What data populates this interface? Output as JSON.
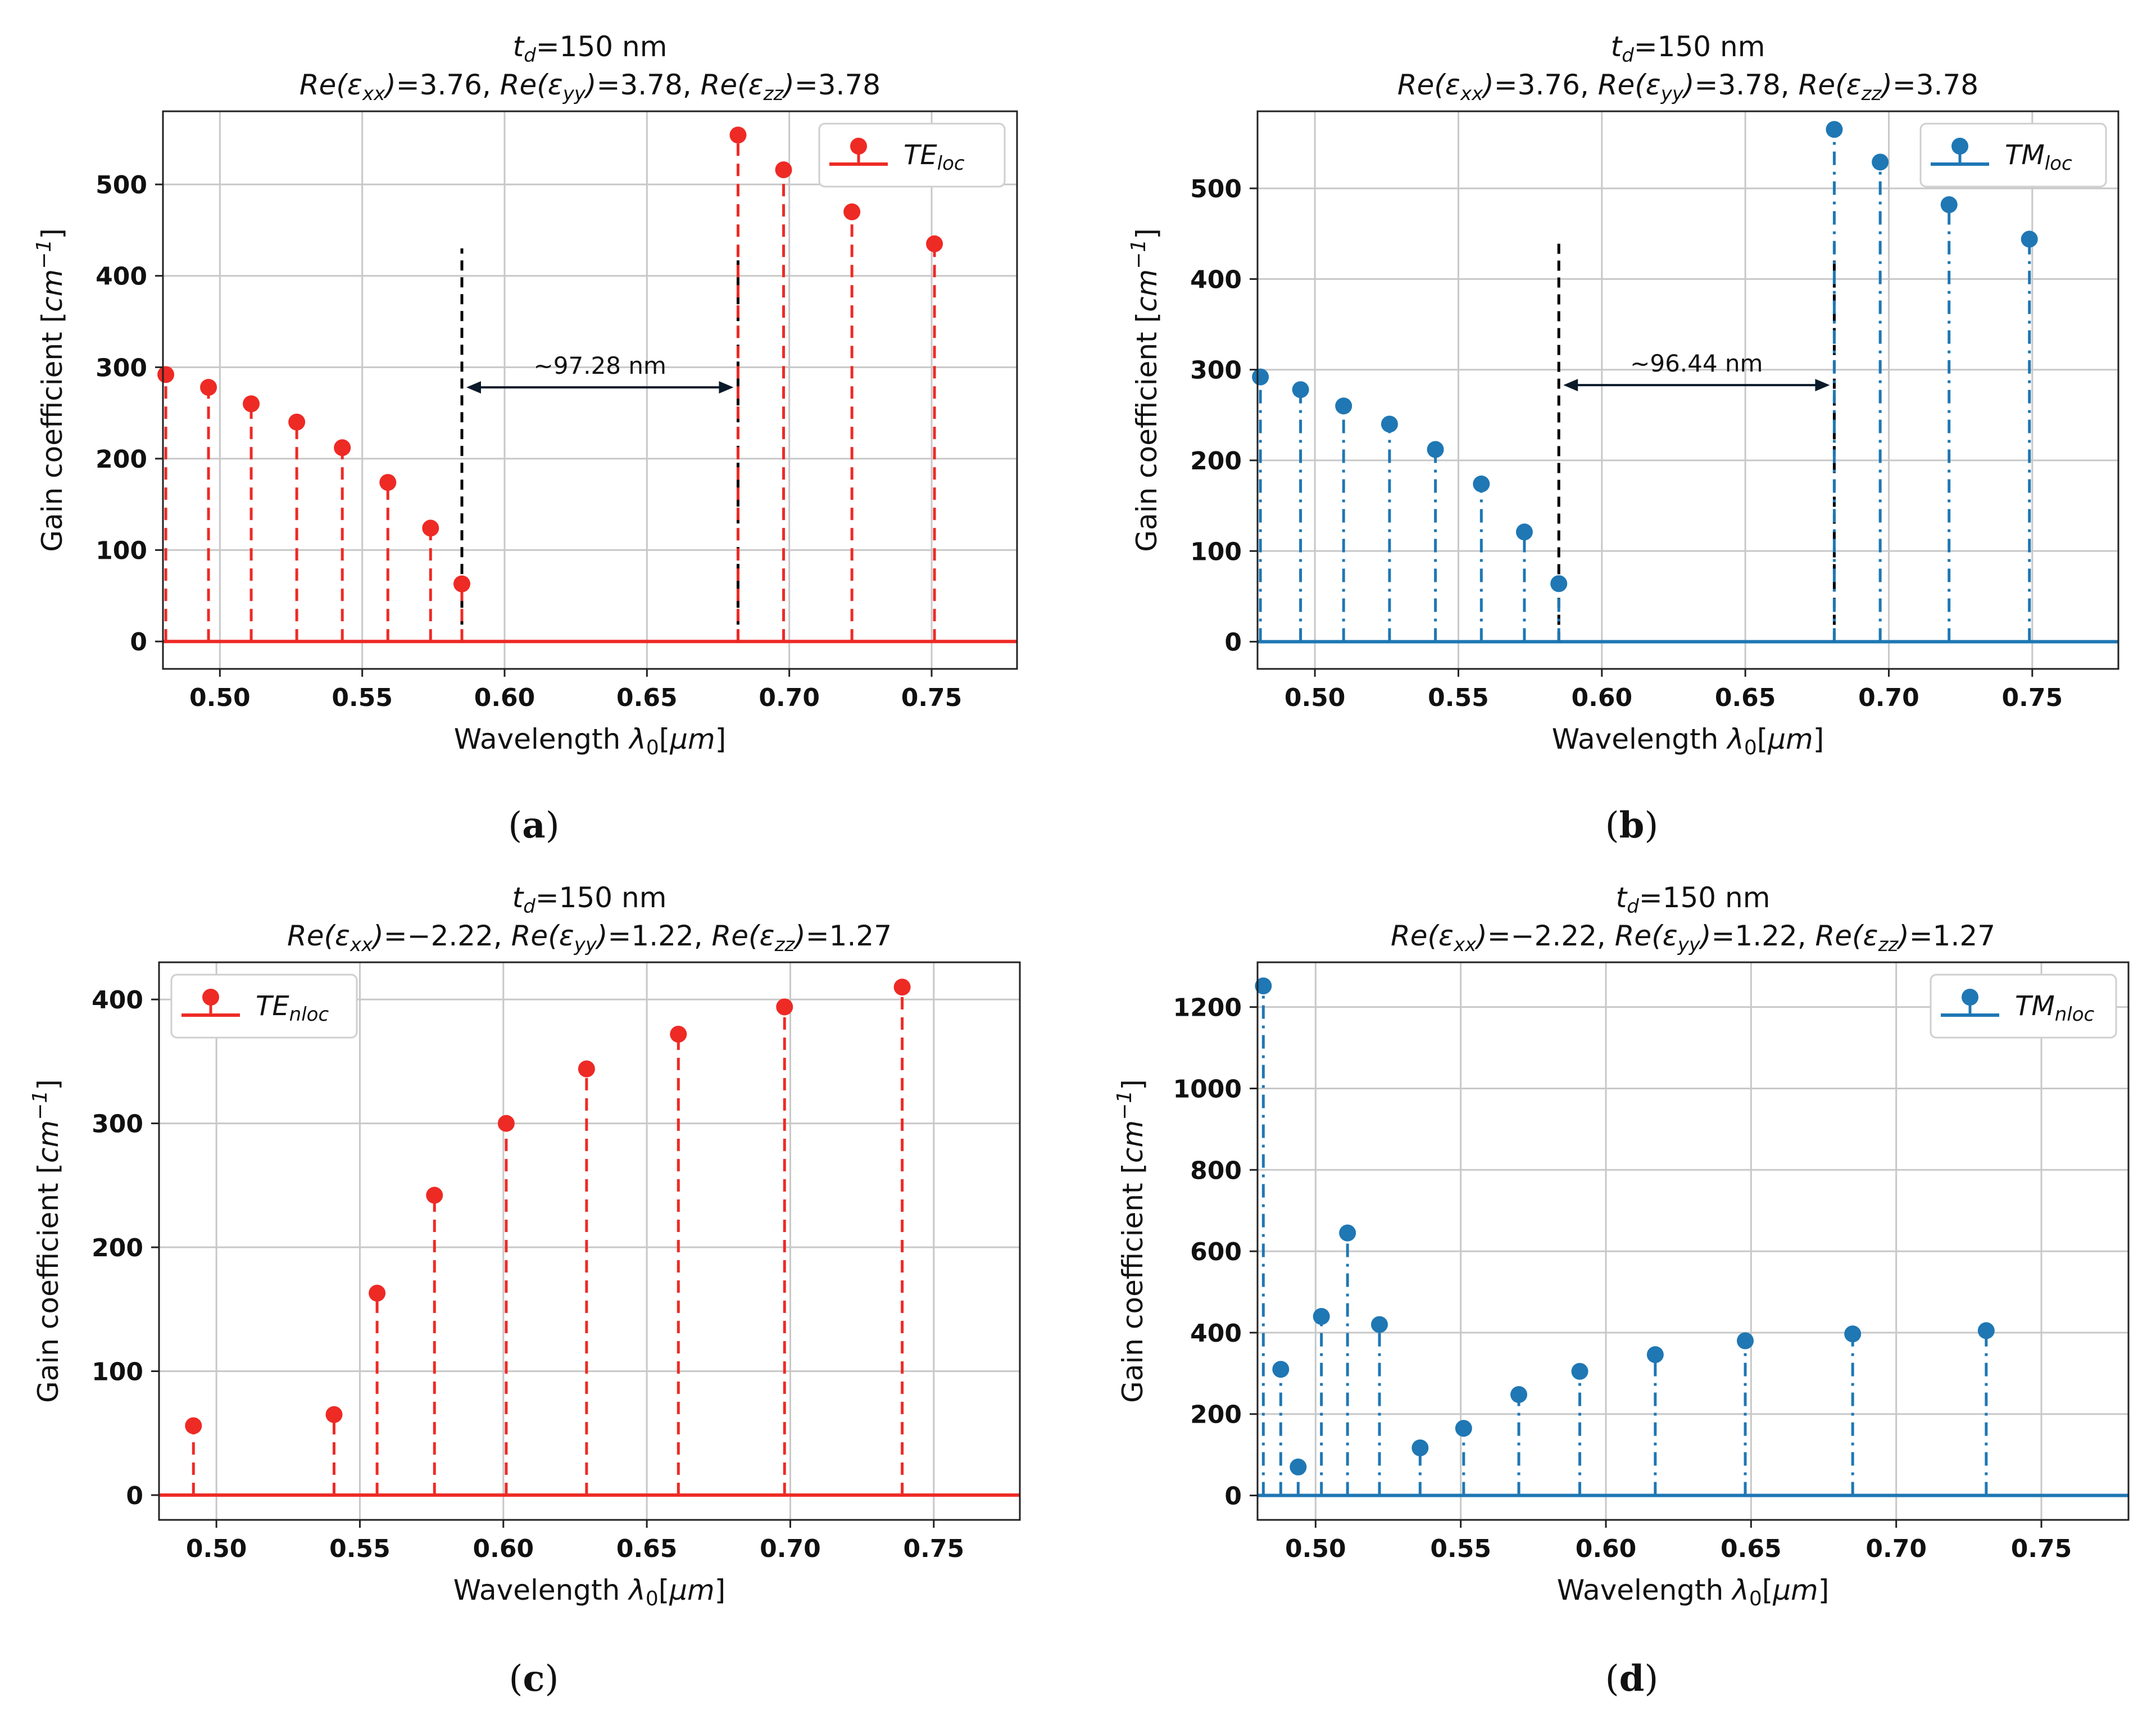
{
  "chart_data": [
    {
      "id": "a",
      "type": "stem",
      "caption_letter": "a",
      "title_line1": {
        "base": "t",
        "sub": "d",
        "rest": "=150 nm"
      },
      "title_line2": [
        "3.76",
        "3.78",
        "3.78"
      ],
      "xlabel_text": "Wavelength ",
      "xlabel_unit": "μm",
      "ylabel_text": "Gain coefficient ",
      "ylabel_unit": "cm",
      "ylabel_exp": "−1",
      "xlim": [
        0.48,
        0.78
      ],
      "ylim": [
        -30,
        580
      ],
      "xticks": [
        0.5,
        0.55,
        0.6,
        0.65,
        0.7,
        0.75
      ],
      "xtick_labels": [
        "0.50",
        "0.55",
        "0.60",
        "0.65",
        "0.70",
        "0.75"
      ],
      "yticks": [
        0,
        100,
        200,
        300,
        400,
        500
      ],
      "ytick_labels": [
        "0",
        "100",
        "200",
        "300",
        "400",
        "500"
      ],
      "color": "#ee2a25",
      "linestyle": "dashed",
      "legend": {
        "base": "TE",
        "sub": "loc",
        "position": "top-right"
      },
      "series": [
        {
          "x": 0.481,
          "y": 292
        },
        {
          "x": 0.496,
          "y": 278
        },
        {
          "x": 0.511,
          "y": 260
        },
        {
          "x": 0.527,
          "y": 240
        },
        {
          "x": 0.543,
          "y": 212
        },
        {
          "x": 0.559,
          "y": 174
        },
        {
          "x": 0.574,
          "y": 124
        },
        {
          "x": 0.585,
          "y": 63
        },
        {
          "x": 0.682,
          "y": 554
        },
        {
          "x": 0.698,
          "y": 516
        },
        {
          "x": 0.722,
          "y": 470
        },
        {
          "x": 0.751,
          "y": 435
        }
      ],
      "markers": [
        {
          "x": 0.585,
          "y": 430
        },
        {
          "x": 0.682,
          "y": 430
        }
      ],
      "annotation": {
        "text": "~97.28 nm",
        "x1": 0.585,
        "x2": 0.682,
        "y": 278
      }
    },
    {
      "id": "b",
      "type": "stem",
      "caption_letter": "b",
      "title_line1": {
        "base": "t",
        "sub": "d",
        "rest": "=150 nm"
      },
      "title_line2": [
        "3.76",
        "3.78",
        "3.78"
      ],
      "xlabel_text": "Wavelength ",
      "xlabel_unit": "μm",
      "ylabel_text": "Gain coefficient ",
      "ylabel_unit": "cm",
      "ylabel_exp": "−1",
      "xlim": [
        0.48,
        0.78
      ],
      "ylim": [
        -30,
        585
      ],
      "xticks": [
        0.5,
        0.55,
        0.6,
        0.65,
        0.7,
        0.75
      ],
      "xtick_labels": [
        "0.50",
        "0.55",
        "0.60",
        "0.65",
        "0.70",
        "0.75"
      ],
      "yticks": [
        0,
        100,
        200,
        300,
        400,
        500
      ],
      "ytick_labels": [
        "0",
        "100",
        "200",
        "300",
        "400",
        "500"
      ],
      "color": "#1f77b4",
      "linestyle": "dashdot",
      "legend": {
        "base": "TM",
        "sub": "loc",
        "position": "top-right"
      },
      "series": [
        {
          "x": 0.481,
          "y": 292
        },
        {
          "x": 0.495,
          "y": 278
        },
        {
          "x": 0.51,
          "y": 260
        },
        {
          "x": 0.526,
          "y": 240
        },
        {
          "x": 0.542,
          "y": 212
        },
        {
          "x": 0.558,
          "y": 174
        },
        {
          "x": 0.573,
          "y": 121
        },
        {
          "x": 0.585,
          "y": 64
        },
        {
          "x": 0.681,
          "y": 565
        },
        {
          "x": 0.697,
          "y": 529
        },
        {
          "x": 0.721,
          "y": 482
        },
        {
          "x": 0.749,
          "y": 444
        }
      ],
      "markers": [
        {
          "x": 0.585,
          "y": 440
        },
        {
          "x": 0.681,
          "y": 440
        }
      ],
      "annotation": {
        "text": "~96.44 nm",
        "x1": 0.585,
        "x2": 0.681,
        "y": 283
      }
    },
    {
      "id": "c",
      "type": "stem",
      "caption_letter": "c",
      "title_line1": {
        "base": "t",
        "sub": "d",
        "rest": "=150 nm"
      },
      "title_line2": [
        "−2.22",
        "1.22",
        "1.27"
      ],
      "xlabel_text": "Wavelength ",
      "xlabel_unit": "μm",
      "ylabel_text": "Gain coefficient ",
      "ylabel_unit": "cm",
      "ylabel_exp": "−1",
      "xlim": [
        0.48,
        0.78
      ],
      "ylim": [
        -20,
        430
      ],
      "xticks": [
        0.5,
        0.55,
        0.6,
        0.65,
        0.7,
        0.75
      ],
      "xtick_labels": [
        "0.50",
        "0.55",
        "0.60",
        "0.65",
        "0.70",
        "0.75"
      ],
      "yticks": [
        0,
        100,
        200,
        300,
        400
      ],
      "ytick_labels": [
        "0",
        "100",
        "200",
        "300",
        "400"
      ],
      "color": "#ee2a25",
      "linestyle": "dashed",
      "legend": {
        "base": "TE",
        "sub": "nloc",
        "position": "top-left"
      },
      "series": [
        {
          "x": 0.492,
          "y": 56
        },
        {
          "x": 0.541,
          "y": 65
        },
        {
          "x": 0.556,
          "y": 163
        },
        {
          "x": 0.576,
          "y": 242
        },
        {
          "x": 0.601,
          "y": 300
        },
        {
          "x": 0.629,
          "y": 344
        },
        {
          "x": 0.661,
          "y": 372
        },
        {
          "x": 0.698,
          "y": 394
        },
        {
          "x": 0.739,
          "y": 410
        }
      ],
      "markers": [],
      "annotation": null
    },
    {
      "id": "d",
      "type": "stem",
      "caption_letter": "d",
      "title_line1": {
        "base": "t",
        "sub": "d",
        "rest": "=150 nm"
      },
      "title_line2": [
        "−2.22",
        "1.22",
        "1.27"
      ],
      "xlabel_text": "Wavelength ",
      "xlabel_unit": "μm",
      "ylabel_text": "Gain coefficient ",
      "ylabel_unit": "cm",
      "ylabel_exp": "−1",
      "xlim": [
        0.48,
        0.78
      ],
      "ylim": [
        -60,
        1310
      ],
      "xticks": [
        0.5,
        0.55,
        0.6,
        0.65,
        0.7,
        0.75
      ],
      "xtick_labels": [
        "0.50",
        "0.55",
        "0.60",
        "0.65",
        "0.70",
        "0.75"
      ],
      "yticks": [
        0,
        200,
        400,
        600,
        800,
        1000,
        1200
      ],
      "ytick_labels": [
        "0",
        "200",
        "400",
        "600",
        "800",
        "1000",
        "1200"
      ],
      "color": "#1f77b4",
      "linestyle": "dashdot",
      "legend": {
        "base": "TM",
        "sub": "nloc",
        "position": "top-right"
      },
      "series": [
        {
          "x": 0.482,
          "y": 1252
        },
        {
          "x": 0.488,
          "y": 310
        },
        {
          "x": 0.494,
          "y": 70
        },
        {
          "x": 0.502,
          "y": 440
        },
        {
          "x": 0.511,
          "y": 645
        },
        {
          "x": 0.522,
          "y": 420
        },
        {
          "x": 0.536,
          "y": 117
        },
        {
          "x": 0.551,
          "y": 165
        },
        {
          "x": 0.57,
          "y": 248
        },
        {
          "x": 0.591,
          "y": 305
        },
        {
          "x": 0.617,
          "y": 346
        },
        {
          "x": 0.648,
          "y": 380
        },
        {
          "x": 0.685,
          "y": 397
        },
        {
          "x": 0.731,
          "y": 405
        }
      ],
      "markers": [],
      "annotation": null
    }
  ]
}
